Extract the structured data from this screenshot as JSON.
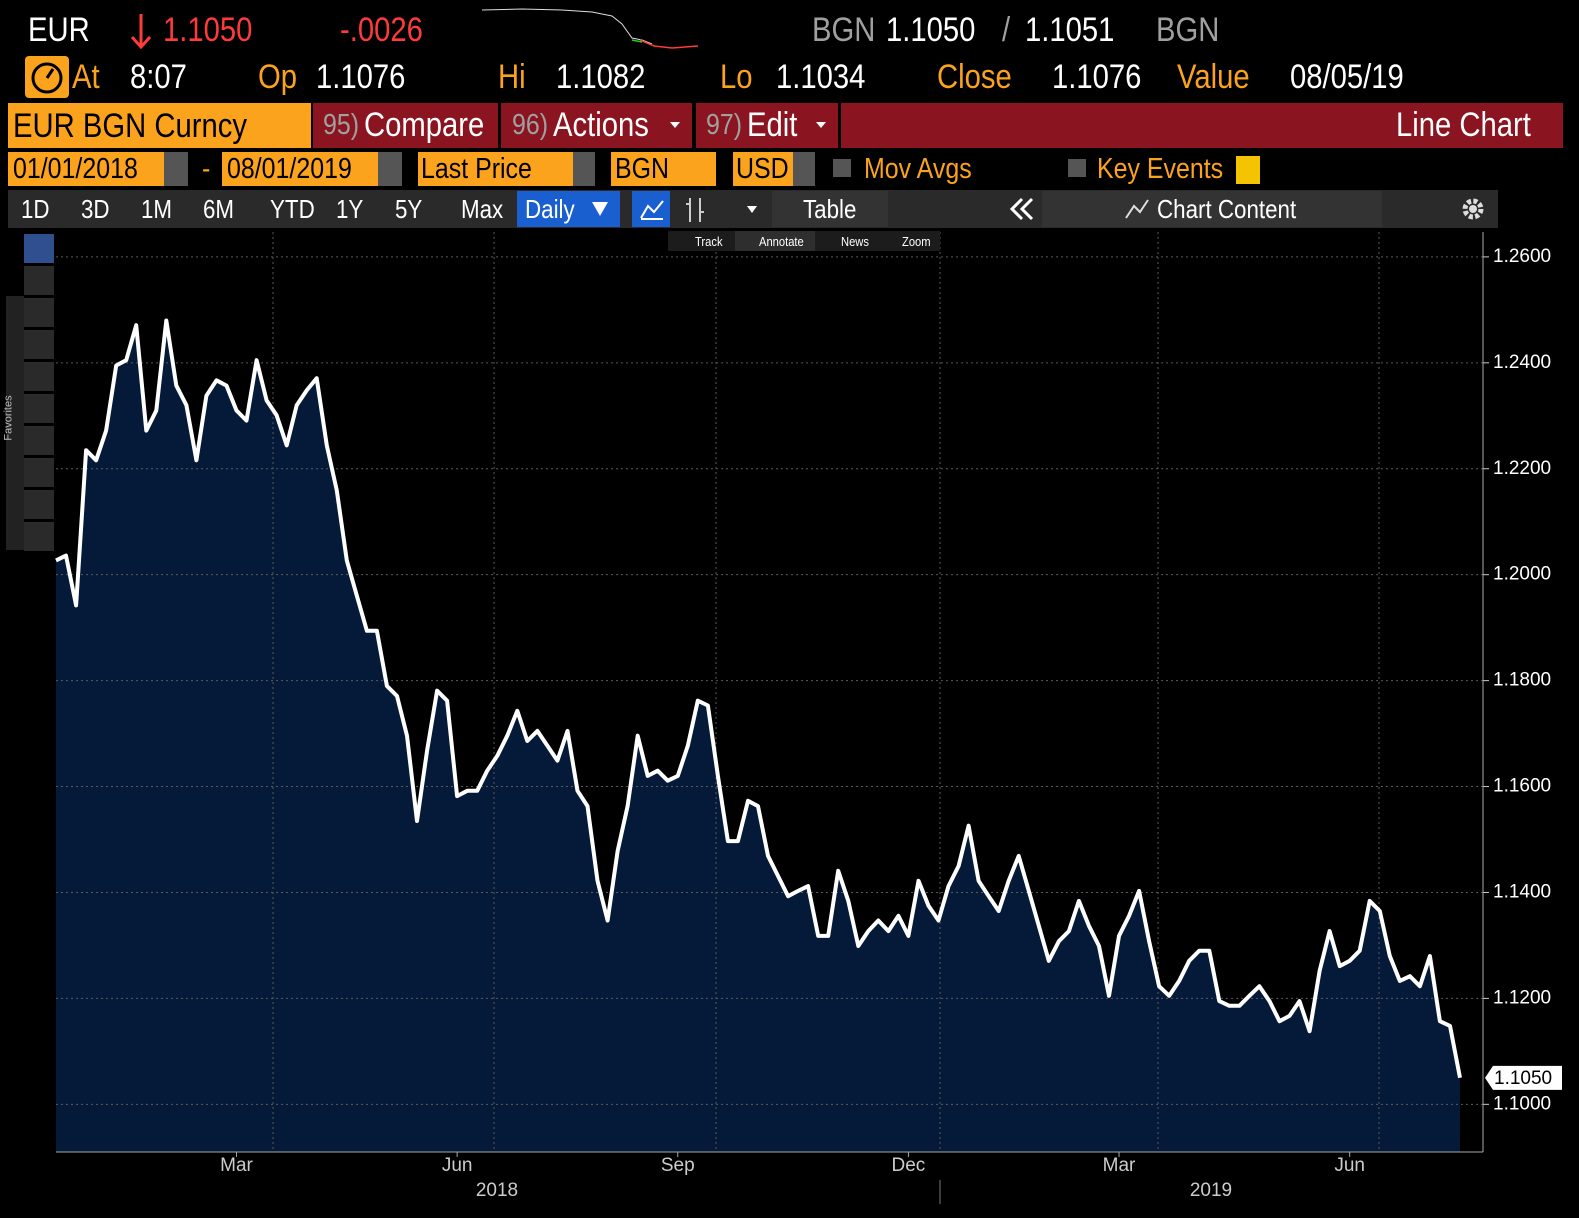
{
  "header": {
    "ticker": "EUR",
    "last": "1.1050",
    "change": "-.0026",
    "bid_ccy": "BGN",
    "bid": "1.1050",
    "sep": "/",
    "ask": "1.1051",
    "ask_ccy": "BGN"
  },
  "quote": {
    "at_label": "At",
    "time": "8:07",
    "open_label": "Op",
    "open": "1.1076",
    "high_label": "Hi",
    "high": "1.1082",
    "low_label": "Lo",
    "low": "1.1034",
    "close_label": "Close",
    "close": "1.1076",
    "value_label": "Value",
    "value_date": "08/05/19"
  },
  "menu": {
    "security": "EUR BGN Curncy",
    "items": [
      {
        "num": "95)",
        "label": "Compare"
      },
      {
        "num": "96)",
        "label": "Actions"
      },
      {
        "num": "97)",
        "label": "Edit"
      }
    ],
    "view": "Line Chart"
  },
  "settings": {
    "start": "01/01/2018",
    "dash": "-",
    "end": "08/01/2019",
    "field": "Last Price",
    "pricing": "BGN",
    "currency": "USD",
    "mov_avgs": "Mov Avgs",
    "key_events": "Key Events"
  },
  "periods": [
    "1D",
    "3D",
    "1M",
    "6M",
    "YTD",
    "1Y",
    "5Y",
    "Max"
  ],
  "frequency": "Daily",
  "table": "Table",
  "chart_content": "Chart Content",
  "tools": [
    "Track",
    "Annotate",
    "News",
    "Zoom"
  ],
  "favorites": "Favorites",
  "chart_data": {
    "type": "area",
    "color": "#ffffff",
    "fill": "#041a38",
    "categories": [
      null,
      null,
      null,
      null,
      null,
      null,
      null,
      null,
      null,
      null,
      null,
      null,
      null,
      null,
      null,
      null,
      null,
      null,
      "Mar",
      null,
      null,
      null,
      null,
      null,
      null,
      null,
      null,
      null,
      null,
      null,
      null,
      null,
      null,
      null,
      null,
      null,
      null,
      null,
      null,
      null,
      "Jun",
      null,
      null,
      null,
      null,
      null,
      null,
      null,
      null,
      null,
      null,
      null,
      null,
      null,
      null,
      null,
      null,
      null,
      null,
      null,
      null,
      null,
      "Sep",
      null,
      null,
      null,
      null,
      null,
      null,
      null,
      null,
      null,
      null,
      null,
      null,
      null,
      null,
      null,
      null,
      null,
      null,
      null,
      null,
      null,
      null,
      "Dec",
      null,
      null,
      null,
      null,
      null,
      null,
      null,
      null,
      null,
      null,
      null,
      null,
      null,
      null,
      null,
      null,
      null,
      null,
      null,
      null,
      "Mar",
      null,
      null,
      null,
      null,
      null,
      null,
      null,
      null,
      null,
      null,
      null,
      null,
      null,
      null,
      null,
      null,
      null,
      null,
      null,
      null,
      null,
      null,
      "Jun",
      null,
      null,
      null,
      null,
      null,
      null,
      null,
      null,
      null,
      null,
      null
    ],
    "values": [
      1.2027,
      1.2036,
      1.1942,
      1.2235,
      1.2216,
      1.2272,
      1.2395,
      1.2405,
      1.2471,
      1.2272,
      1.231,
      1.248,
      1.2357,
      1.232,
      1.2216,
      1.2338,
      1.2367,
      1.2357,
      1.231,
      1.2291,
      1.2405,
      1.2329,
      1.2301,
      1.2244,
      1.232,
      1.2348,
      1.2371,
      1.2244,
      1.2159,
      1.2027,
      1.196,
      1.1894,
      1.1894,
      1.179,
      1.1771,
      1.1696,
      1.1535,
      1.1668,
      1.1781,
      1.1762,
      1.1582,
      1.1592,
      1.1592,
      1.163,
      1.1658,
      1.1696,
      1.1743,
      1.1686,
      1.1705,
      1.1677,
      1.1649,
      1.1705,
      1.1592,
      1.1563,
      1.1422,
      1.1347,
      1.1478,
      1.1563,
      1.1696,
      1.162,
      1.163,
      1.1611,
      1.162,
      1.1677,
      1.1762,
      1.1753,
      1.162,
      1.1497,
      1.1497,
      1.1573,
      1.1563,
      1.1469,
      1.1431,
      1.1393,
      1.1403,
      1.1412,
      1.1318,
      1.1318,
      1.1441,
      1.1384,
      1.1299,
      1.1327,
      1.1347,
      1.1327,
      1.1356,
      1.1318,
      1.1422,
      1.1375,
      1.1347,
      1.1412,
      1.145,
      1.1526,
      1.1422,
      1.1393,
      1.1365,
      1.1422,
      1.1469,
      1.1403,
      1.1337,
      1.1271,
      1.1308,
      1.1327,
      1.1384,
      1.1337,
      1.1299,
      1.1205,
      1.1318,
      1.1356,
      1.1403,
      1.1308,
      1.1223,
      1.1205,
      1.1233,
      1.1271,
      1.129,
      1.129,
      1.1195,
      1.1186,
      1.1186,
      1.1205,
      1.1223,
      1.1195,
      1.1157,
      1.1167,
      1.1195,
      1.1138,
      1.1252,
      1.1327,
      1.1261,
      1.1271,
      1.129,
      1.1384,
      1.1365,
      1.128,
      1.1233,
      1.1242,
      1.1223,
      1.128,
      1.1157,
      1.1148,
      1.105
    ],
    "value_labels": [
      null,
      null,
      null,
      null,
      null,
      null,
      null,
      null,
      null,
      null,
      null,
      null,
      null,
      null,
      null,
      null,
      null,
      null,
      null,
      null,
      null,
      null,
      null,
      null,
      null,
      null,
      null,
      null,
      null,
      null,
      null,
      null,
      null,
      null,
      null,
      null,
      null,
      null,
      null,
      null,
      null,
      null,
      null,
      null,
      null,
      null,
      null,
      null,
      null,
      null,
      null,
      null,
      null,
      null,
      null,
      null,
      null,
      null,
      null,
      null,
      null,
      null,
      null,
      null,
      null,
      null,
      null,
      null,
      null,
      null,
      null,
      null,
      null,
      null,
      null,
      null,
      null,
      null,
      null,
      null,
      null,
      null,
      null,
      null,
      null,
      null,
      null,
      null,
      null,
      null,
      null,
      null,
      null,
      null,
      null,
      null,
      null,
      null,
      null,
      null,
      null,
      null,
      null,
      null,
      null,
      null,
      null,
      null,
      null,
      null,
      null,
      null,
      null,
      null,
      null,
      null,
      null,
      null,
      null,
      null,
      null,
      null,
      null,
      null,
      null,
      null,
      null,
      null,
      null,
      null,
      null,
      null,
      null,
      null,
      null,
      null,
      null,
      null,
      null,
      null,
      "1.1050"
    ],
    "year_labels": [
      "2018",
      "2019"
    ],
    "ylim": [
      1.091,
      1.2647
    ],
    "yticks": [
      {
        "value": 1.1,
        "label": "1.1000"
      },
      {
        "value": 1.12,
        "label": "1.1200"
      },
      {
        "value": 1.14,
        "label": "1.1400"
      },
      {
        "value": 1.16,
        "label": "1.1600"
      },
      {
        "value": 1.18,
        "label": "1.1800"
      },
      {
        "value": 1.2,
        "label": "1.2000"
      },
      {
        "value": 1.22,
        "label": "1.2200"
      },
      {
        "value": 1.24,
        "label": "1.2400"
      },
      {
        "value": 1.26,
        "label": "1.2600"
      }
    ],
    "grid": true
  }
}
